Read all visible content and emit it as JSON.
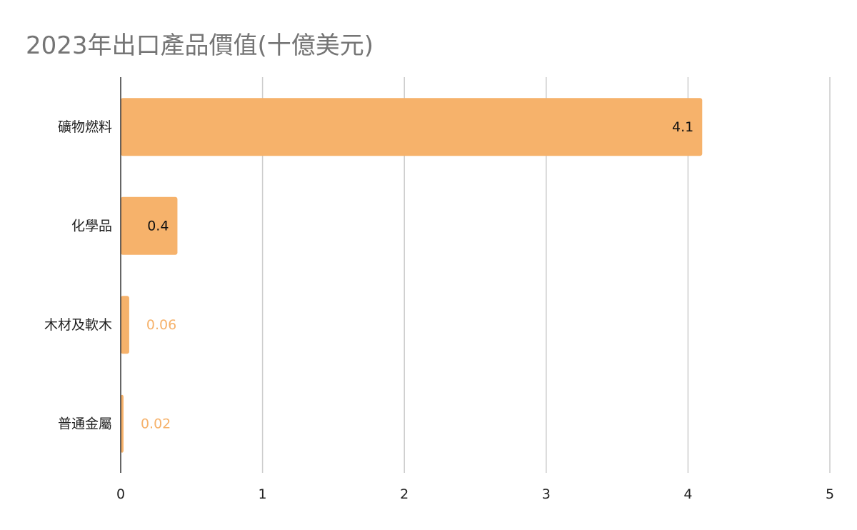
{
  "chart_data": {
    "type": "bar",
    "orientation": "horizontal",
    "title": "2023年出口產品價值(十億美元)",
    "xlabel": "",
    "ylabel": "",
    "categories": [
      "礦物燃料",
      "化學品",
      "木材及軟木",
      "普通金屬"
    ],
    "values": [
      4.1,
      0.4,
      0.06,
      0.02
    ],
    "value_labels": [
      "4.1",
      "0.4",
      "0.06",
      "0.02"
    ],
    "xlim": [
      0,
      5
    ],
    "xticks": [
      "0",
      "1",
      "2",
      "3",
      "4",
      "5"
    ],
    "grid": true,
    "legend": "none",
    "colors": {
      "bar": "#F6B26B",
      "label_inside": "#111111",
      "label_outside": "#F6B26B",
      "grid": "#CCCCCC",
      "axis": "#333333",
      "title": "#757575"
    }
  }
}
